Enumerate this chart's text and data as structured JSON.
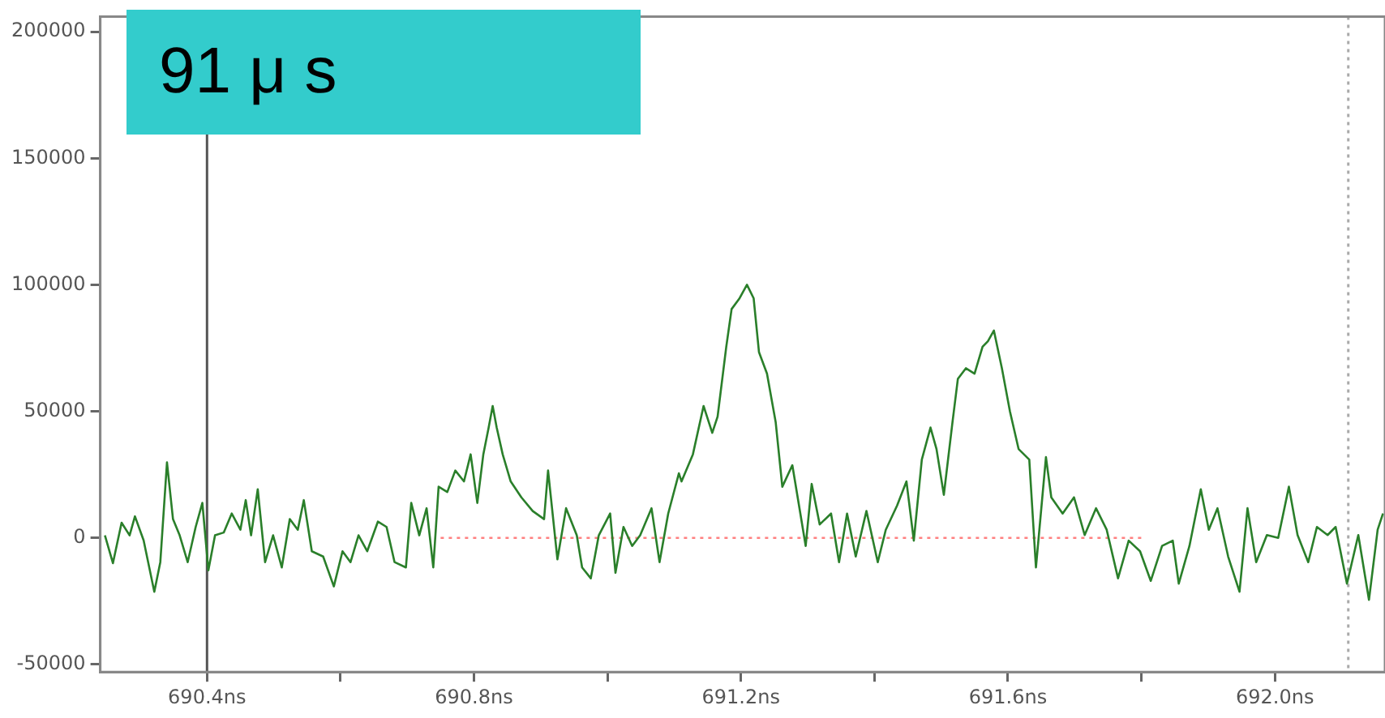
{
  "chart_data": {
    "type": "line",
    "title": "91 μ s",
    "xlim": [
      690.24,
      692.165
    ],
    "ylim": [
      -53000,
      206000
    ],
    "xticks": [
      {
        "value": 690.4,
        "label": "690.4ns"
      },
      {
        "value": 690.6,
        "label": null
      },
      {
        "value": 690.8,
        "label": "690.8ns"
      },
      {
        "value": 691.0,
        "label": null
      },
      {
        "value": 691.2,
        "label": "691.2ns"
      },
      {
        "value": 691.4,
        "label": null
      },
      {
        "value": 691.6,
        "label": "691.6ns"
      },
      {
        "value": 691.8,
        "label": null
      },
      {
        "value": 692.0,
        "label": "692.0ns"
      }
    ],
    "yticks": [
      -50000,
      0,
      50000,
      100000,
      150000,
      200000
    ],
    "grid": false,
    "legend": false,
    "marker": "none",
    "ref_lines": [
      {
        "axis": "x",
        "value": 690.4,
        "color": "#555555",
        "line_style": "solid"
      },
      {
        "axis": "x",
        "value": 692.11,
        "color": "#aaaaaa",
        "line_style": "dotted"
      }
    ],
    "series": [
      {
        "color": "#2a7f2a",
        "line_style": "solid",
        "x": [
          690.247,
          690.259,
          690.272,
          690.284,
          690.292,
          690.305,
          690.321,
          690.33,
          690.34,
          690.349,
          690.359,
          690.371,
          690.383,
          690.393,
          690.402,
          690.412,
          690.425,
          690.437,
          690.45,
          690.458,
          690.466,
          690.476,
          690.487,
          690.499,
          690.512,
          690.524,
          690.536,
          690.545,
          690.557,
          690.574,
          690.59,
          690.603,
          690.615,
          690.627,
          690.64,
          690.656,
          690.669,
          690.681,
          690.698,
          690.706,
          690.718,
          690.729,
          690.739,
          690.747,
          690.76,
          690.772,
          690.785,
          690.795,
          690.805,
          690.814,
          690.822,
          690.828,
          690.834,
          690.843,
          690.855,
          690.871,
          690.888,
          690.905,
          690.911,
          690.925,
          690.938,
          690.954,
          690.962,
          690.975,
          690.987,
          691.004,
          691.012,
          691.024,
          691.037,
          691.049,
          691.066,
          691.078,
          691.091,
          691.107,
          691.111,
          691.128,
          691.144,
          691.157,
          691.165,
          691.178,
          691.186,
          691.198,
          691.209,
          691.219,
          691.227,
          691.239,
          691.252,
          691.262,
          691.277,
          691.289,
          691.297,
          691.306,
          691.318,
          691.335,
          691.347,
          691.359,
          691.372,
          691.388,
          691.405,
          691.417,
          691.434,
          691.448,
          691.459,
          691.471,
          691.484,
          691.493,
          691.504,
          691.517,
          691.525,
          691.537,
          691.55,
          691.562,
          691.57,
          691.579,
          691.591,
          691.603,
          691.616,
          691.632,
          691.642,
          691.657,
          691.665,
          691.682,
          691.699,
          691.715,
          691.732,
          691.748,
          691.765,
          691.781,
          691.798,
          691.814,
          691.831,
          691.847,
          691.856,
          691.872,
          691.889,
          691.901,
          691.914,
          691.93,
          691.947,
          691.959,
          691.972,
          691.988,
          692.005,
          692.021,
          692.034,
          692.05,
          692.063,
          692.079,
          692.091,
          692.108,
          692.125,
          692.141,
          692.154,
          692.162
        ],
        "values": [
          1000,
          -10000,
          6000,
          1000,
          8500,
          -1000,
          -21300,
          -9600,
          29800,
          7400,
          1000,
          -9600,
          4300,
          13800,
          -12800,
          1000,
          2100,
          9600,
          3200,
          14900,
          1000,
          19200,
          -9600,
          1000,
          -11700,
          7400,
          3200,
          14900,
          -5300,
          -7400,
          -19200,
          -5300,
          -9600,
          1000,
          -5300,
          6400,
          4300,
          -9600,
          -11700,
          13800,
          1000,
          11700,
          -11700,
          20200,
          18100,
          26600,
          22300,
          33000,
          13800,
          33000,
          43600,
          52100,
          43600,
          33000,
          22300,
          16000,
          10600,
          7400,
          26600,
          -8500,
          11700,
          1000,
          -11700,
          -16000,
          1000,
          9600,
          -13800,
          4300,
          -3200,
          1000,
          11700,
          -9600,
          9600,
          25500,
          22300,
          33000,
          52100,
          41500,
          47900,
          75500,
          90400,
          94700,
          100000,
          94700,
          73400,
          64900,
          45800,
          20200,
          28700,
          9600,
          -3200,
          21300,
          5300,
          9600,
          -9600,
          9600,
          -7400,
          10600,
          -9600,
          3200,
          12800,
          22300,
          -1100,
          30900,
          43600,
          35100,
          17000,
          45800,
          62800,
          67000,
          64900,
          75500,
          77700,
          81900,
          67000,
          50000,
          35100,
          30900,
          -11700,
          31900,
          16000,
          9600,
          16000,
          1100,
          11700,
          3200,
          -16000,
          -1100,
          -5300,
          -17000,
          -3200,
          -1100,
          -18100,
          -3200,
          19200,
          3200,
          11700,
          -7400,
          -21300,
          11700,
          -9600,
          1100,
          0,
          20200,
          1100,
          -9600,
          4300,
          1100,
          4300,
          -18100,
          1100,
          -24500,
          3200,
          9600
        ]
      },
      {
        "color": "#ff8080",
        "line_style": "dotted",
        "x": [
          690.75,
          691.8
        ],
        "values": [
          0,
          0
        ]
      }
    ]
  }
}
